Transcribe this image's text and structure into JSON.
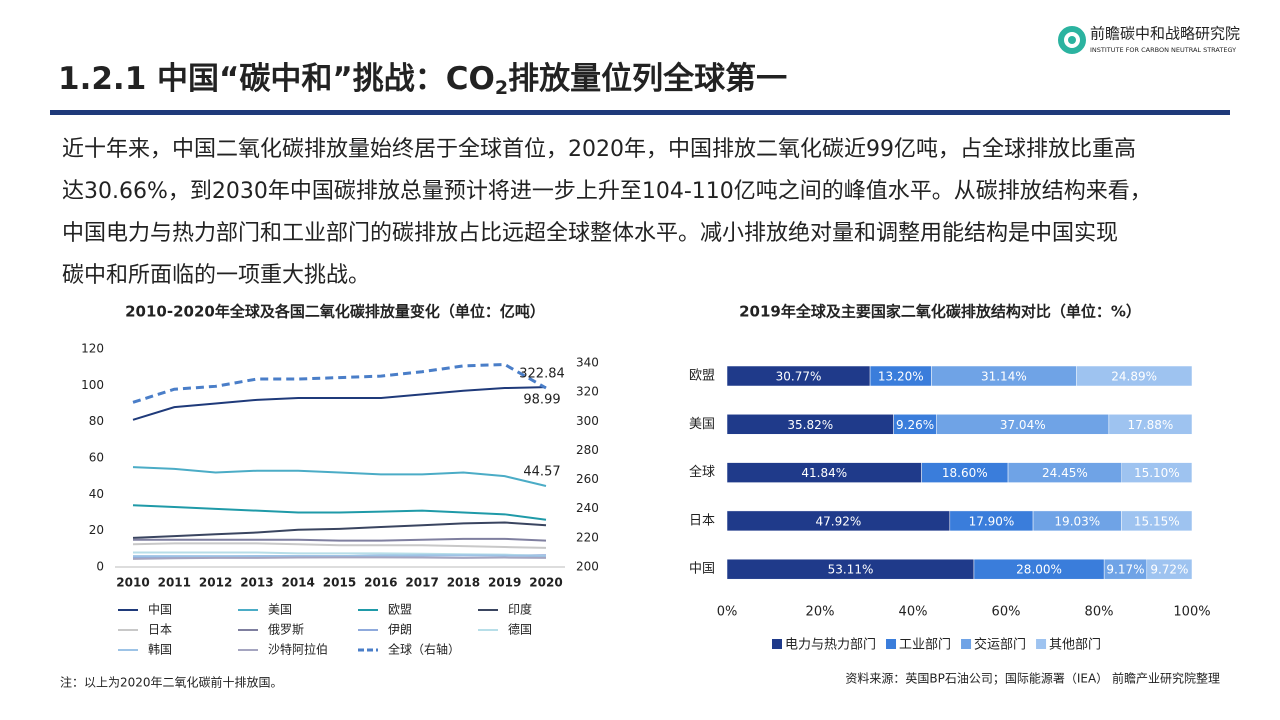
{
  "header": {
    "title_pre": "1.2.1 中国“碳中和”挑战：CO",
    "title_sub": "2",
    "title_post": "排放量位列全球第一",
    "logo_name": "前瞻碳中和战略研究院",
    "logo_sub": "INSTITUTE FOR CARBON NEUTRAL STRATEGY"
  },
  "paragraph": [
    "近十年来，中国二氧化碳排放量始终居于全球首位，2020年，中国排放二氧化碳近99亿吨，占全球排放比重高",
    "达30.66%，到2030年中国碳排放总量预计将进一步上升至104-110亿吨之间的峰值水平。从碳排放结构来看，",
    "中国电力与热力部门和工业部门的碳排放占比远超全球整体水平。减小排放绝对量和调整用能结构是中国实现",
    "碳中和所面临的一项重大挑战。"
  ],
  "chart_data": [
    {
      "type": "line",
      "title": "2010-2020年全球及各国二氧化碳排放量变化（单位：亿吨）",
      "x": [
        "2010",
        "2011",
        "2012",
        "2013",
        "2014",
        "2015",
        "2016",
        "2017",
        "2018",
        "2019",
        "2020"
      ],
      "ylim": [
        0,
        120
      ],
      "yticks": [
        0,
        20,
        40,
        60,
        80,
        100,
        120
      ],
      "y2lim": [
        200,
        340
      ],
      "y2ticks": [
        200,
        220,
        240,
        260,
        280,
        300,
        320,
        340
      ],
      "series": [
        {
          "name": "中国",
          "color": "#1f3a7a",
          "values": [
            81,
            88,
            90,
            92,
            93,
            93,
            93,
            95,
            97,
            98.5,
            98.99
          ],
          "value_labels": [
            null,
            null,
            null,
            null,
            null,
            null,
            null,
            null,
            null,
            null,
            "98.99"
          ]
        },
        {
          "name": "美国",
          "color": "#4bacc6",
          "values": [
            55,
            54,
            52,
            53,
            53,
            52,
            51,
            51,
            52,
            50,
            44.57
          ],
          "value_labels": [
            null,
            null,
            null,
            null,
            null,
            null,
            null,
            null,
            null,
            null,
            "44.57"
          ]
        },
        {
          "name": "欧盟",
          "color": "#1f9aa8",
          "values": [
            34,
            33,
            32,
            31,
            30,
            30,
            30.5,
            31,
            30,
            29,
            26
          ]
        },
        {
          "name": "印度",
          "color": "#3a4560",
          "values": [
            16,
            17,
            18,
            19,
            20.5,
            21,
            22,
            23,
            24,
            24.5,
            23
          ]
        },
        {
          "name": "日本",
          "color": "#c8c8c8",
          "values": [
            12.5,
            13,
            13,
            13,
            12.5,
            12,
            12,
            12,
            11.5,
            11,
            10.5
          ]
        },
        {
          "name": "俄罗斯",
          "color": "#7f7f9f",
          "values": [
            15,
            15,
            15,
            15,
            15,
            14.5,
            14.5,
            15,
            15.5,
            15.5,
            14.5
          ]
        },
        {
          "name": "伊朗",
          "color": "#8faadc",
          "values": [
            5.5,
            5.5,
            5.7,
            6,
            6,
            6,
            6.3,
            6.4,
            6.5,
            6.5,
            6.5
          ]
        },
        {
          "name": "德国",
          "color": "#b7dee8",
          "values": [
            8,
            8,
            8,
            8,
            7.5,
            7.5,
            7.5,
            7.3,
            7,
            6.8,
            6
          ]
        },
        {
          "name": "韩国",
          "color": "#9dc3e6",
          "values": [
            6,
            6,
            6,
            6,
            6,
            6,
            6.2,
            6.5,
            6.5,
            6.3,
            5.9
          ]
        },
        {
          "name": "沙特阿拉伯",
          "color": "#a5a5c0",
          "values": [
            4.5,
            4.8,
            5,
            5,
            5.2,
            5.3,
            5.3,
            5.2,
            5,
            5.2,
            5
          ]
        },
        {
          "name": "全球（右轴）",
          "color": "#4a7ec8",
          "axis": "y2",
          "line_style": "dashed",
          "values": [
            313,
            322,
            324,
            329,
            329,
            330,
            331,
            334,
            338,
            339,
            322.84
          ],
          "value_labels": [
            null,
            null,
            null,
            null,
            null,
            null,
            null,
            null,
            null,
            null,
            "322.84"
          ]
        }
      ]
    },
    {
      "type": "bar",
      "orientation": "horizontal",
      "stacked": true,
      "title": "2019年全球及主要国家二氧化碳排放结构对比（单位：%）",
      "categories": [
        "欧盟",
        "美国",
        "全球",
        "日本",
        "中国"
      ],
      "xlim": [
        0,
        100
      ],
      "xticks": [
        {
          "value": 0,
          "label": "0%"
        },
        {
          "value": 20,
          "label": "20%"
        },
        {
          "value": 40,
          "label": "40%"
        },
        {
          "value": 60,
          "label": "60%"
        },
        {
          "value": 80,
          "label": "80%"
        },
        {
          "value": 100,
          "label": "100%"
        }
      ],
      "series": [
        {
          "name": "电力与热力部门",
          "color": "#1f3a8a",
          "values": [
            30.77,
            35.82,
            41.84,
            47.92,
            53.11
          ],
          "value_labels": [
            "30.77%",
            "35.82%",
            "41.84%",
            "47.92%",
            "53.11%"
          ]
        },
        {
          "name": "工业部门",
          "color": "#3a7ddb",
          "values": [
            13.2,
            9.26,
            18.6,
            17.9,
            28
          ],
          "value_labels": [
            "13.20%",
            "9.26%",
            "18.60%",
            "17.90%",
            "28.00%"
          ]
        },
        {
          "name": "交运部门",
          "color": "#6fa3e6",
          "values": [
            31.14,
            37.04,
            24.45,
            19.03,
            9.17
          ],
          "value_labels": [
            "31.14%",
            "37.04%",
            "24.45%",
            "19.03%",
            "9.17%"
          ]
        },
        {
          "name": "其他部门",
          "color": "#9ec3f0",
          "values": [
            24.89,
            17.88,
            15.1,
            15.15,
            9.72
          ],
          "value_labels": [
            "24.89%",
            "17.88%",
            "15.10%",
            "15.15%",
            "9.72%"
          ]
        }
      ]
    }
  ],
  "note": "注：以上为2020年二氧化碳前十排放国。",
  "source": "资料来源：英国BP石油公司；国际能源署（IEA） 前瞻产业研究院整理"
}
